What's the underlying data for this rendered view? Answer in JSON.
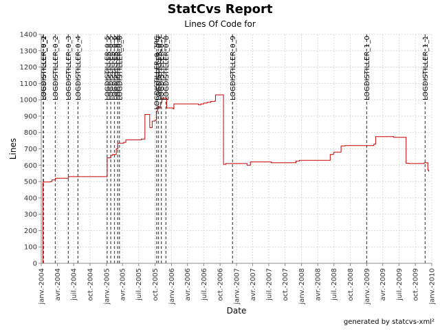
{
  "chart_data": {
    "type": "line",
    "title": "StatCvs Report",
    "subtitle": "Lines Of Code for",
    "footer": "generated by statcvs-xml²",
    "xlabel": "Date",
    "ylabel": "Lines",
    "ylim": [
      0,
      1400
    ],
    "yticks": [
      0,
      100,
      200,
      300,
      400,
      500,
      600,
      700,
      800,
      900,
      1000,
      1100,
      1200,
      1300,
      1400
    ],
    "xlim": [
      "2004-01-01",
      "2010-01-01"
    ],
    "xticks": [
      {
        "date": "2004-01-01",
        "label": "janv.-2004"
      },
      {
        "date": "2004-04-01",
        "label": "avr.-2004"
      },
      {
        "date": "2004-07-01",
        "label": "juil.-2004"
      },
      {
        "date": "2004-10-01",
        "label": "oct.-2004"
      },
      {
        "date": "2005-01-01",
        "label": "janv.-2005"
      },
      {
        "date": "2005-04-01",
        "label": "avr.-2005"
      },
      {
        "date": "2005-07-01",
        "label": "juil.-2005"
      },
      {
        "date": "2005-10-01",
        "label": "oct.-2005"
      },
      {
        "date": "2006-01-01",
        "label": "janv.-2006"
      },
      {
        "date": "2006-04-01",
        "label": "avr.-2006"
      },
      {
        "date": "2006-07-01",
        "label": "juil.-2006"
      },
      {
        "date": "2006-10-01",
        "label": "oct.-2006"
      },
      {
        "date": "2007-01-01",
        "label": "janv.-2007"
      },
      {
        "date": "2007-04-01",
        "label": "avr.-2007"
      },
      {
        "date": "2007-07-01",
        "label": "juil.-2007"
      },
      {
        "date": "2007-10-01",
        "label": "oct.-2007"
      },
      {
        "date": "2008-01-01",
        "label": "janv.-2008"
      },
      {
        "date": "2008-04-01",
        "label": "avr.-2008"
      },
      {
        "date": "2008-07-01",
        "label": "juil.-2008"
      },
      {
        "date": "2008-10-01",
        "label": "oct.-2008"
      },
      {
        "date": "2009-01-01",
        "label": "janv.-2009"
      },
      {
        "date": "2009-04-01",
        "label": "avr.-2009"
      },
      {
        "date": "2009-07-01",
        "label": "juil.-2009"
      },
      {
        "date": "2009-10-01",
        "label": "oct.-2009"
      },
      {
        "date": "2010-01-01",
        "label": "janv.-2010"
      }
    ],
    "grid": true,
    "line_color": "#cc0000",
    "marker_color": "#555555",
    "series": [
      {
        "x": [
          "2004-01-10",
          "2004-01-10",
          "2004-01-12",
          "2004-01-14",
          "2004-02-20",
          "2004-03-01",
          "2004-03-20",
          "2004-05-05",
          "2004-06-01",
          "2004-12-25",
          "2005-01-05",
          "2005-01-25",
          "2005-02-05",
          "2005-02-25",
          "2005-03-05",
          "2005-03-25",
          "2005-04-08",
          "2005-04-20",
          "2005-07-15",
          "2005-08-05",
          "2005-09-01",
          "2005-09-15",
          "2005-10-01",
          "2005-10-08",
          "2005-10-15",
          "2005-10-25",
          "2005-11-01",
          "2005-11-08",
          "2005-11-10",
          "2005-12-05",
          "2006-01-10",
          "2006-01-15",
          "2006-06-01",
          "2006-06-15",
          "2006-07-01",
          "2006-07-20",
          "2006-08-10",
          "2006-09-01",
          "2006-09-05",
          "2006-10-15",
          "2006-10-20",
          "2006-11-01",
          "2007-03-01",
          "2007-03-20",
          "2007-07-15",
          "2007-12-01",
          "2007-12-20",
          "2008-03-15",
          "2008-06-10",
          "2008-06-25",
          "2008-07-01",
          "2008-08-10",
          "2008-09-01",
          "2008-11-15",
          "2009-01-01",
          "2009-02-10",
          "2009-02-20",
          "2009-06-01",
          "2009-08-01",
          "2009-08-10",
          "2009-08-25",
          "2009-11-10",
          "2009-11-20",
          "2009-12-10",
          "2009-12-15"
        ],
        "y": [
          0,
          490,
          500,
          497,
          500,
          510,
          520,
          520,
          530,
          530,
          645,
          660,
          665,
          700,
          735,
          735,
          740,
          755,
          760,
          910,
          830,
          870,
          875,
          930,
          960,
          950,
          985,
          1000,
          1010,
          950,
          945,
          975,
          970,
          975,
          980,
          985,
          990,
          992,
          1030,
          1030,
          605,
          610,
          600,
          620,
          615,
          625,
          630,
          630,
          665,
          668,
          680,
          718,
          720,
          720,
          720,
          728,
          775,
          770,
          770,
          612,
          610,
          610,
          615,
          570,
          560
        ]
      }
    ],
    "tags": [
      {
        "date": "2004-01-12",
        "label": "LOGDISTILLER_0_1"
      },
      {
        "date": "2004-01-14",
        "label": "LOGDISTILLER_0_2"
      },
      {
        "date": "2004-03-20",
        "label": "LOGDISTILLER_0_2"
      },
      {
        "date": "2004-06-01",
        "label": "LOGDISTILLER_0_3"
      },
      {
        "date": "2004-07-25",
        "label": "LOGDISTILLER_0_4"
      },
      {
        "date": "2005-01-05",
        "label": "LOGDISTILLER_0_5"
      },
      {
        "date": "2005-01-25",
        "label": "LOGDISTILLER_0_5"
      },
      {
        "date": "2005-02-15",
        "label": "LOGDISTILLER_0_6"
      },
      {
        "date": "2005-03-05",
        "label": "LOGDISTILLER_0_6"
      },
      {
        "date": "2005-03-15",
        "label": "LOGDISTILLER_0_6"
      },
      {
        "date": "2005-10-10",
        "label": "LOGDISTILLER_0_7RC"
      },
      {
        "date": "2005-10-20",
        "label": "LOGDISTILLER_0_7"
      },
      {
        "date": "2005-11-05",
        "label": "LOGDISTILLER_0_7"
      },
      {
        "date": "2005-12-01",
        "label": "LOGDISTILLER_0_8"
      },
      {
        "date": "2006-12-10",
        "label": "LOGDISTILLER_0_9"
      },
      {
        "date": "2009-01-01",
        "label": "LOGDISTILLER_1_0"
      },
      {
        "date": "2009-11-25",
        "label": "LOGDISTILLER_1_1"
      }
    ]
  }
}
